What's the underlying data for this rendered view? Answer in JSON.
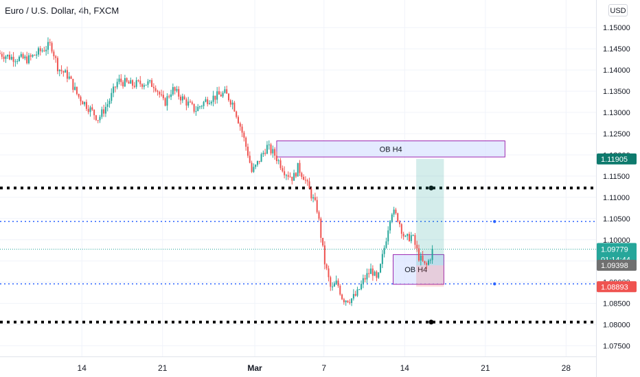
{
  "chart_data": {
    "type": "candlestick",
    "title": "Euro / U.S. Dollar, 4h, FXCM",
    "currency_label": "USD",
    "y_ticks": [
      "1.15000",
      "1.14500",
      "1.14000",
      "1.13500",
      "1.13000",
      "1.12500",
      "1.12000",
      "1.11500",
      "1.11000",
      "1.10500",
      "1.10000",
      "1.09500",
      "1.09000",
      "1.08500",
      "1.08000",
      "1.07500"
    ],
    "ylim": [
      1.0725,
      1.1565
    ],
    "x_ticks": [
      {
        "label": "14",
        "day": 14
      },
      {
        "label": "21",
        "day": 21
      },
      {
        "label": "Mar",
        "day": 29
      },
      {
        "label": "7",
        "day": 35
      },
      {
        "label": "14",
        "day": 42
      },
      {
        "label": "21",
        "day": 49
      },
      {
        "label": "28",
        "day": 56
      }
    ],
    "xlim": [
      6.9,
      58.6
    ],
    "grid": true,
    "price_series_anchors": [
      [
        6.9,
        1.144
      ],
      [
        8.0,
        1.143
      ],
      [
        9.5,
        1.1425
      ],
      [
        10.6,
        1.1445
      ],
      [
        11.5,
        1.146
      ],
      [
        12.1,
        1.1405
      ],
      [
        13.0,
        1.1385
      ],
      [
        13.8,
        1.134
      ],
      [
        14.8,
        1.131
      ],
      [
        15.6,
        1.1285
      ],
      [
        16.5,
        1.1325
      ],
      [
        17.3,
        1.1375
      ],
      [
        18.5,
        1.1365
      ],
      [
        19.5,
        1.137
      ],
      [
        20.5,
        1.1365
      ],
      [
        21.3,
        1.132
      ],
      [
        22.0,
        1.1355
      ],
      [
        23.0,
        1.133
      ],
      [
        24.0,
        1.1305
      ],
      [
        25.0,
        1.133
      ],
      [
        26.0,
        1.134
      ],
      [
        26.6,
        1.1345
      ],
      [
        27.3,
        1.132
      ],
      [
        28.0,
        1.126
      ],
      [
        28.6,
        1.12
      ],
      [
        28.9,
        1.116
      ],
      [
        29.2,
        1.117
      ],
      [
        30.2,
        1.122
      ],
      [
        30.9,
        1.12
      ],
      [
        31.8,
        1.116
      ],
      [
        32.5,
        1.1145
      ],
      [
        32.9,
        1.117
      ],
      [
        33.4,
        1.115
      ],
      [
        34.0,
        1.111
      ],
      [
        34.6,
        1.107
      ],
      [
        35.2,
        1.095
      ],
      [
        35.8,
        1.088
      ],
      [
        36.3,
        1.09
      ],
      [
        36.8,
        1.086
      ],
      [
        37.5,
        1.086
      ],
      [
        38.0,
        1.087
      ],
      [
        38.6,
        1.0905
      ],
      [
        39.3,
        1.093
      ],
      [
        39.8,
        1.09
      ],
      [
        40.5,
        1.0995
      ],
      [
        41.0,
        1.107
      ],
      [
        41.6,
        1.105
      ],
      [
        42.2,
        1.1
      ],
      [
        42.8,
        1.101
      ],
      [
        43.4,
        1.096
      ],
      [
        44.0,
        1.0935
      ],
      [
        44.4,
        1.096
      ]
    ],
    "last_close": 1.09779,
    "price_labels": [
      {
        "name": "target",
        "value": 1.11905,
        "text": "1.11905"
      },
      {
        "name": "last-price",
        "value": 1.09779,
        "text": "1.09779",
        "countdown": "01:14:44"
      },
      {
        "name": "entry",
        "value": 1.09398,
        "text": "1.09398"
      },
      {
        "name": "stop",
        "value": 1.08893,
        "text": "1.08893"
      }
    ],
    "horizontal_levels": [
      {
        "name": "resistance",
        "value": 1.1122,
        "style": "thick-dotted",
        "color": "#000000"
      },
      {
        "name": "support",
        "value": 1.0806,
        "style": "thick-dotted",
        "color": "#000000"
      },
      {
        "name": "upper-blue",
        "value": 1.1043,
        "style": "blue-dotted",
        "color": "#2962ff"
      },
      {
        "name": "lower-blue",
        "value": 1.0896,
        "style": "blue-dotted",
        "color": "#2962ff"
      }
    ],
    "zones": [
      {
        "label": "OB H4",
        "day_from": 30.9,
        "day_to": 50.7,
        "price_top": 1.1233,
        "price_bottom": 1.1195
      },
      {
        "label": "OB H4",
        "day_from": 41.0,
        "day_to": 45.4,
        "price_top": 1.0965,
        "price_bottom": 1.0895
      }
    ],
    "position": {
      "day_from": 43.0,
      "day_to": 45.4,
      "entry": 1.09398,
      "target": 1.11905,
      "stop": 1.08893
    },
    "colors": {
      "up": "#26a69a",
      "down": "#ef5350",
      "zone_fill": "#dbe4ff",
      "zone_stroke": "#9c27b0",
      "profit": "#26a69a",
      "loss": "#ef5350",
      "grid": "#f0f3fa",
      "axis_text": "#131722"
    }
  }
}
